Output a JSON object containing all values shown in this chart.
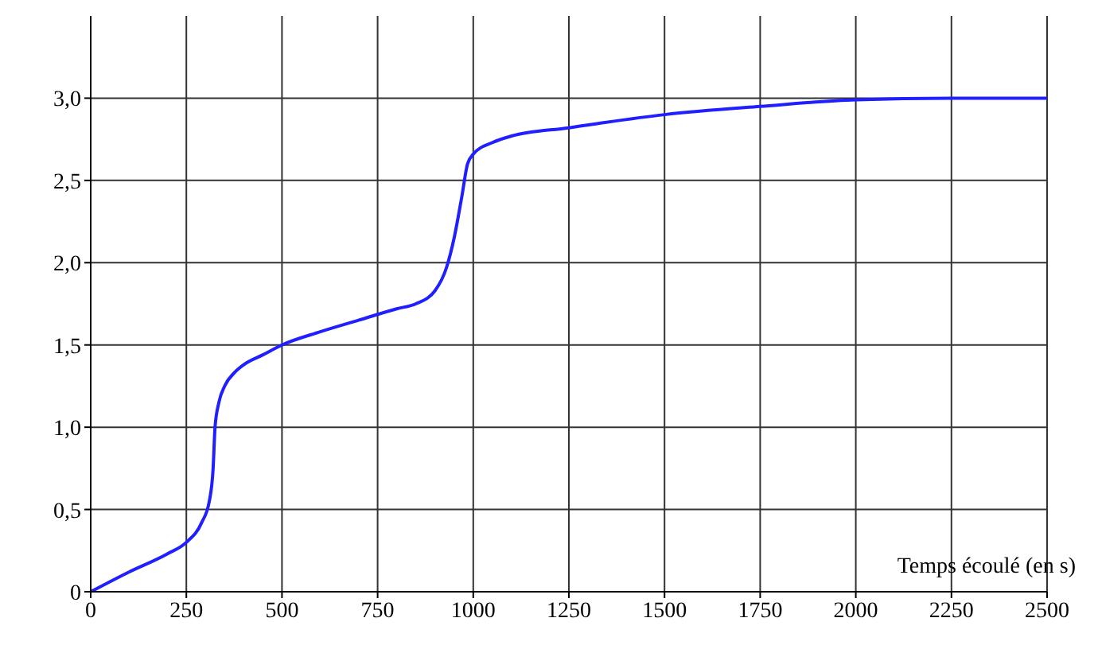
{
  "chart_data": {
    "type": "line",
    "xlabel": "Temps écoulé (en s)",
    "x": [
      0,
      100,
      200,
      250,
      290,
      310,
      320,
      325,
      335,
      350,
      375,
      400,
      450,
      500,
      600,
      700,
      800,
      850,
      900,
      930,
      950,
      970,
      985,
      1000,
      1050,
      1100,
      1250,
      1500,
      1750,
      2000,
      2250,
      2500
    ],
    "series": [
      {
        "color": "#1f1fff",
        "values": [
          0,
          0.12,
          0.23,
          0.3,
          0.42,
          0.55,
          0.75,
          1.0,
          1.15,
          1.25,
          1.33,
          1.38,
          1.44,
          1.5,
          1.58,
          1.65,
          1.72,
          1.75,
          1.83,
          1.97,
          2.15,
          2.4,
          2.6,
          2.66,
          2.73,
          2.77,
          2.82,
          2.9,
          2.95,
          2.99,
          3.0,
          3.0
        ]
      }
    ],
    "xlim": [
      0,
      2500
    ],
    "xticks": [
      0,
      250,
      500,
      750,
      1000,
      1250,
      1500,
      1750,
      2000,
      2250,
      2500
    ],
    "ylim": [
      0,
      3.5
    ],
    "yticks": [
      0,
      {
        "value": 0.5,
        "label": "0,5"
      },
      {
        "value": 1,
        "label": "1,0"
      },
      {
        "value": 1.5,
        "label": "1,5"
      },
      {
        "value": 2,
        "label": "2,0"
      },
      {
        "value": 2.5,
        "label": "2,5"
      },
      {
        "value": 3,
        "label": "3,0"
      }
    ],
    "grid": true,
    "legend": false,
    "marker": "none",
    "line_style": "solid"
  }
}
